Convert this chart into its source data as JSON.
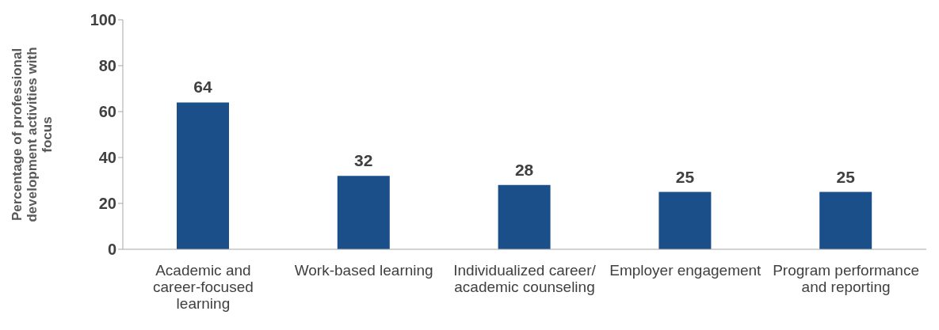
{
  "chart_data": {
    "type": "bar",
    "ylabel": "Percentage of professional development activities with focus",
    "categories": [
      "Academic and career-focused learning",
      "Work-based learning",
      "Individualized career/ academic counseling",
      "Employer engagement",
      "Program performance and reporting"
    ],
    "values": [
      64,
      32,
      28,
      25,
      25
    ],
    "color": "#1b4f8a",
    "ylim": [
      0,
      100
    ],
    "yticks": [
      0,
      20,
      40,
      60,
      80,
      100
    ],
    "grid": false,
    "data_labels": true
  }
}
